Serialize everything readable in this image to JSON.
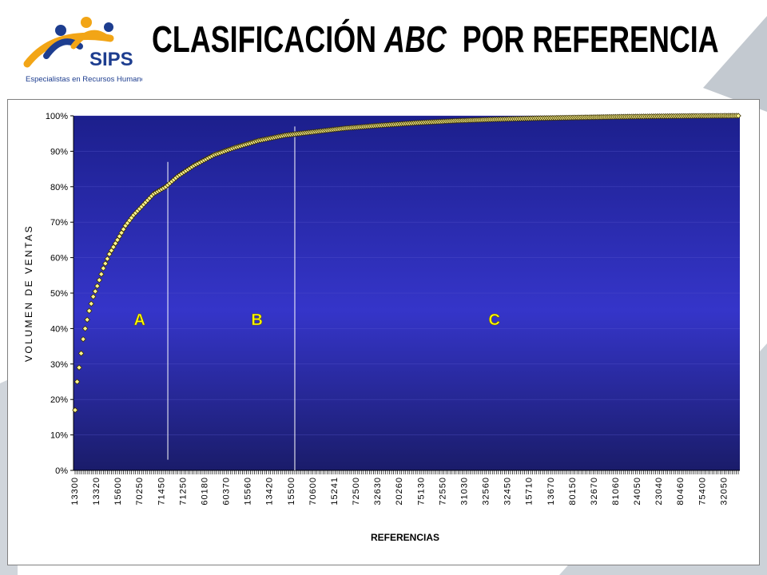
{
  "title": {
    "part1": "CLASIFICACIÓN ",
    "part2": "ABC",
    "part3": "  POR REFERENCIA"
  },
  "logo": {
    "brand": "SIPS",
    "tagline": "Especialistas en Recursos Humanos"
  },
  "colors": {
    "plot_top": "#1c1f8c",
    "plot_mid": "#3434c8",
    "plot_bottom": "#1a1c6a",
    "marker": "#fff68f",
    "zone_label": "#ffff00",
    "accent_gray": "#b8bfc8"
  },
  "chart_data": {
    "type": "line",
    "title": "",
    "xlabel": "REFERENCIAS",
    "ylabel": "VOLUMEN DE VENTAS",
    "ylim": [
      0,
      100
    ],
    "yticks": [
      "0%",
      "10%",
      "20%",
      "30%",
      "40%",
      "50%",
      "60%",
      "70%",
      "80%",
      "90%",
      "100%"
    ],
    "x_tick_labels": [
      "13300",
      "13320",
      "15600",
      "70250",
      "71450",
      "71250",
      "60180",
      "60370",
      "15560",
      "13420",
      "15500",
      "70600",
      "15241",
      "72500",
      "32630",
      "20260",
      "75130",
      "72550",
      "31030",
      "32560",
      "32450",
      "15710",
      "13670",
      "80150",
      "32670",
      "81060",
      "24050",
      "23040",
      "80460",
      "75400",
      "32050"
    ],
    "n_points": 330,
    "series": [
      {
        "values_summary": "cumulative sales volume %",
        "points": [
          [
            1,
            17
          ],
          [
            2,
            25
          ],
          [
            3,
            29
          ],
          [
            4,
            33
          ],
          [
            5,
            37
          ],
          [
            6,
            40
          ],
          [
            8,
            45
          ],
          [
            10,
            49
          ],
          [
            12,
            52
          ],
          [
            15,
            57
          ],
          [
            18,
            61
          ],
          [
            22,
            65
          ],
          [
            26,
            69
          ],
          [
            30,
            72
          ],
          [
            35,
            75
          ],
          [
            40,
            78
          ],
          [
            46,
            80
          ],
          [
            52,
            83
          ],
          [
            60,
            86
          ],
          [
            70,
            89
          ],
          [
            80,
            91
          ],
          [
            92,
            93
          ],
          [
            105,
            94.5
          ],
          [
            120,
            95.5
          ],
          [
            135,
            96.5
          ],
          [
            150,
            97.2
          ],
          [
            170,
            98
          ],
          [
            190,
            98.6
          ],
          [
            210,
            99
          ],
          [
            230,
            99.3
          ],
          [
            250,
            99.5
          ],
          [
            270,
            99.7
          ],
          [
            290,
            99.85
          ],
          [
            310,
            99.95
          ],
          [
            330,
            100
          ]
        ]
      }
    ],
    "zones": [
      {
        "label": "A",
        "boundary_index": 47
      },
      {
        "label": "B",
        "boundary_index": 110
      },
      {
        "label": "C"
      }
    ],
    "grid": "horizontal",
    "legend": "none"
  }
}
